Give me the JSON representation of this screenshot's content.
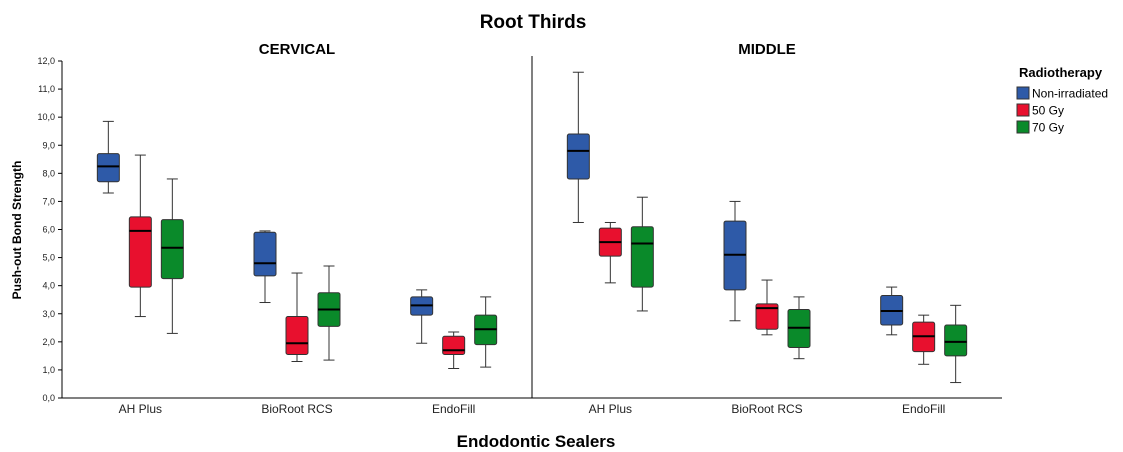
{
  "chart_data": {
    "type": "box",
    "title": "Root Thirds",
    "xlabel": "Endodontic Sealers",
    "ylabel": "Push-out Bond Strength",
    "ylim": [
      0,
      12
    ],
    "y_ticks": [
      "0,0",
      "1,0",
      "2,0",
      "3,0",
      "4,0",
      "5,0",
      "6,0",
      "7,0",
      "8,0",
      "9,0",
      "10,0",
      "11,0",
      "12,0"
    ],
    "grid": false,
    "legend": {
      "title": "Radiotherapy",
      "placement": "right",
      "items": [
        {
          "label": "Non-irradiated",
          "color": "#2e5aa8"
        },
        {
          "label": "50 Gy",
          "color": "#e8102e"
        },
        {
          "label": "70 Gy",
          "color": "#0a8a2a"
        }
      ]
    },
    "categories": [
      "AH Plus",
      "BioRoot RCS",
      "EndoFill"
    ],
    "panels": [
      {
        "name": "CERVICAL",
        "groups": [
          {
            "category": "AH Plus",
            "boxes": [
              {
                "series": "Non-irradiated",
                "min": 7.3,
                "q1": 7.7,
                "median": 8.25,
                "q3": 8.7,
                "max": 9.85
              },
              {
                "series": "50 Gy",
                "min": 2.9,
                "q1": 3.95,
                "median": 5.95,
                "q3": 6.45,
                "max": 8.65
              },
              {
                "series": "70 Gy",
                "min": 2.3,
                "q1": 4.25,
                "median": 5.35,
                "q3": 6.35,
                "max": 7.8
              }
            ]
          },
          {
            "category": "BioRoot RCS",
            "boxes": [
              {
                "series": "Non-irradiated",
                "min": 3.4,
                "q1": 4.35,
                "median": 4.8,
                "q3": 5.9,
                "max": 5.95
              },
              {
                "series": "50 Gy",
                "min": 1.3,
                "q1": 1.55,
                "median": 1.95,
                "q3": 2.9,
                "max": 4.45
              },
              {
                "series": "70 Gy",
                "min": 1.35,
                "q1": 2.55,
                "median": 3.15,
                "q3": 3.75,
                "max": 4.7
              }
            ]
          },
          {
            "category": "EndoFill",
            "boxes": [
              {
                "series": "Non-irradiated",
                "min": 1.95,
                "q1": 2.95,
                "median": 3.3,
                "q3": 3.6,
                "max": 3.85
              },
              {
                "series": "50 Gy",
                "min": 1.05,
                "q1": 1.55,
                "median": 1.7,
                "q3": 2.2,
                "max": 2.35
              },
              {
                "series": "70 Gy",
                "min": 1.1,
                "q1": 1.9,
                "median": 2.45,
                "q3": 2.95,
                "max": 3.6
              }
            ]
          }
        ]
      },
      {
        "name": "MIDDLE",
        "groups": [
          {
            "category": "AH Plus",
            "boxes": [
              {
                "series": "Non-irradiated",
                "min": 6.25,
                "q1": 7.8,
                "median": 8.8,
                "q3": 9.4,
                "max": 11.6
              },
              {
                "series": "50 Gy",
                "min": 4.1,
                "q1": 5.05,
                "median": 5.55,
                "q3": 6.05,
                "max": 6.25
              },
              {
                "series": "70 Gy",
                "min": 3.1,
                "q1": 3.95,
                "median": 5.5,
                "q3": 6.1,
                "max": 7.15
              }
            ]
          },
          {
            "category": "BioRoot RCS",
            "boxes": [
              {
                "series": "Non-irradiated",
                "min": 2.75,
                "q1": 3.85,
                "median": 5.1,
                "q3": 6.3,
                "max": 7.0
              },
              {
                "series": "50 Gy",
                "min": 2.25,
                "q1": 2.45,
                "median": 3.2,
                "q3": 3.35,
                "max": 4.2
              },
              {
                "series": "70 Gy",
                "min": 1.4,
                "q1": 1.8,
                "median": 2.5,
                "q3": 3.15,
                "max": 3.6
              }
            ]
          },
          {
            "category": "EndoFill",
            "boxes": [
              {
                "series": "Non-irradiated",
                "min": 2.25,
                "q1": 2.6,
                "median": 3.1,
                "q3": 3.65,
                "max": 3.95
              },
              {
                "series": "50 Gy",
                "min": 1.2,
                "q1": 1.65,
                "median": 2.2,
                "q3": 2.7,
                "max": 2.95
              },
              {
                "series": "70 Gy",
                "min": 0.55,
                "q1": 1.5,
                "median": 2.0,
                "q3": 2.6,
                "max": 3.3
              }
            ]
          }
        ]
      }
    ]
  }
}
